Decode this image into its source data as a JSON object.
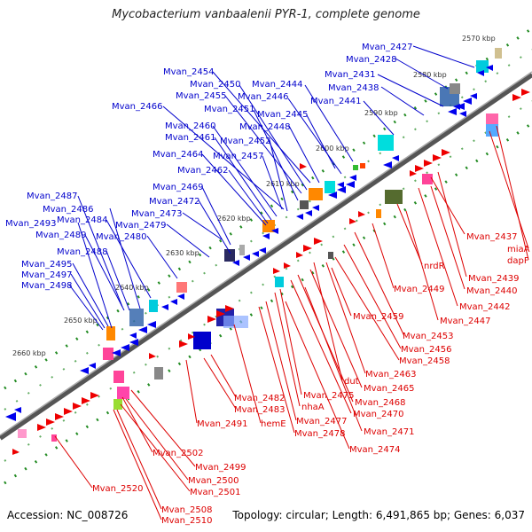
{
  "title": "Mycobacterium vanbaalenii PYR-1, complete genome",
  "footer": {
    "accession": "Accession: NC_008726",
    "topology": "Topology: circular; Length: 6,491,865 bp; Genes: 6,037"
  },
  "colors": {
    "forward_label": "#0000cc",
    "reverse_label": "#dd0000",
    "backbone": "#666666",
    "tick": "#228b22"
  },
  "ticks": [
    "2570 kbp",
    "2580 kbp",
    "2590 kbp",
    "2600 kbp",
    "2610 kbp",
    "2620 kbp",
    "2630 kbp",
    "2640 kbp",
    "2650 kbp",
    "2660 kbp"
  ],
  "forward_genes": [
    "Mvan_2427",
    "Mvan_2428",
    "Mvan_2431",
    "Mvan_2438",
    "Mvan_2441",
    "Mvan_2444",
    "Mvan_2446",
    "Mvan_2445",
    "Mvan_2454",
    "Mvan_2450",
    "Mvan_2455",
    "Mvan_2451",
    "Mvan_2448",
    "Mvan_2466",
    "Mvan_2460",
    "Mvan_2461",
    "Mvan_2452",
    "Mvan_2464",
    "Mvan_2457",
    "Mvan_2462",
    "Mvan_2469",
    "Mvan_2472",
    "Mvan_2473",
    "Mvan_2479",
    "Mvan_2480",
    "Mvan_2487",
    "Mvan_2486",
    "Mvan_2484",
    "Mvan_2493",
    "Mvan_2489",
    "Mvan_2488",
    "Mvan_2495",
    "Mvan_2497",
    "Mvan_2498"
  ],
  "reverse_genes": [
    "Mvan_2437",
    "miaA",
    "dapF",
    "nrdR",
    "Mvan_2439",
    "Mvan_2440",
    "Mvan_2449",
    "Mvan_2442",
    "Mvan_2447",
    "Mvan_2459",
    "Mvan_2453",
    "Mvan_2456",
    "Mvan_2458",
    "Mvan_2463",
    "dut",
    "Mvan_2465",
    "Mvan_2468",
    "Mvan_2470",
    "Mvan_2482",
    "Mvan_2475",
    "Mvan_2483",
    "nhaA",
    "Mvan_2491",
    "hemE",
    "Mvan_2477",
    "Mvan_2478",
    "Mvan_2471",
    "Mvan_2474",
    "Mvan_2502",
    "Mvan_2499",
    "Mvan_2500",
    "Mvan_2501",
    "Mvan_2520",
    "Mvan_2508",
    "Mvan_2510"
  ]
}
